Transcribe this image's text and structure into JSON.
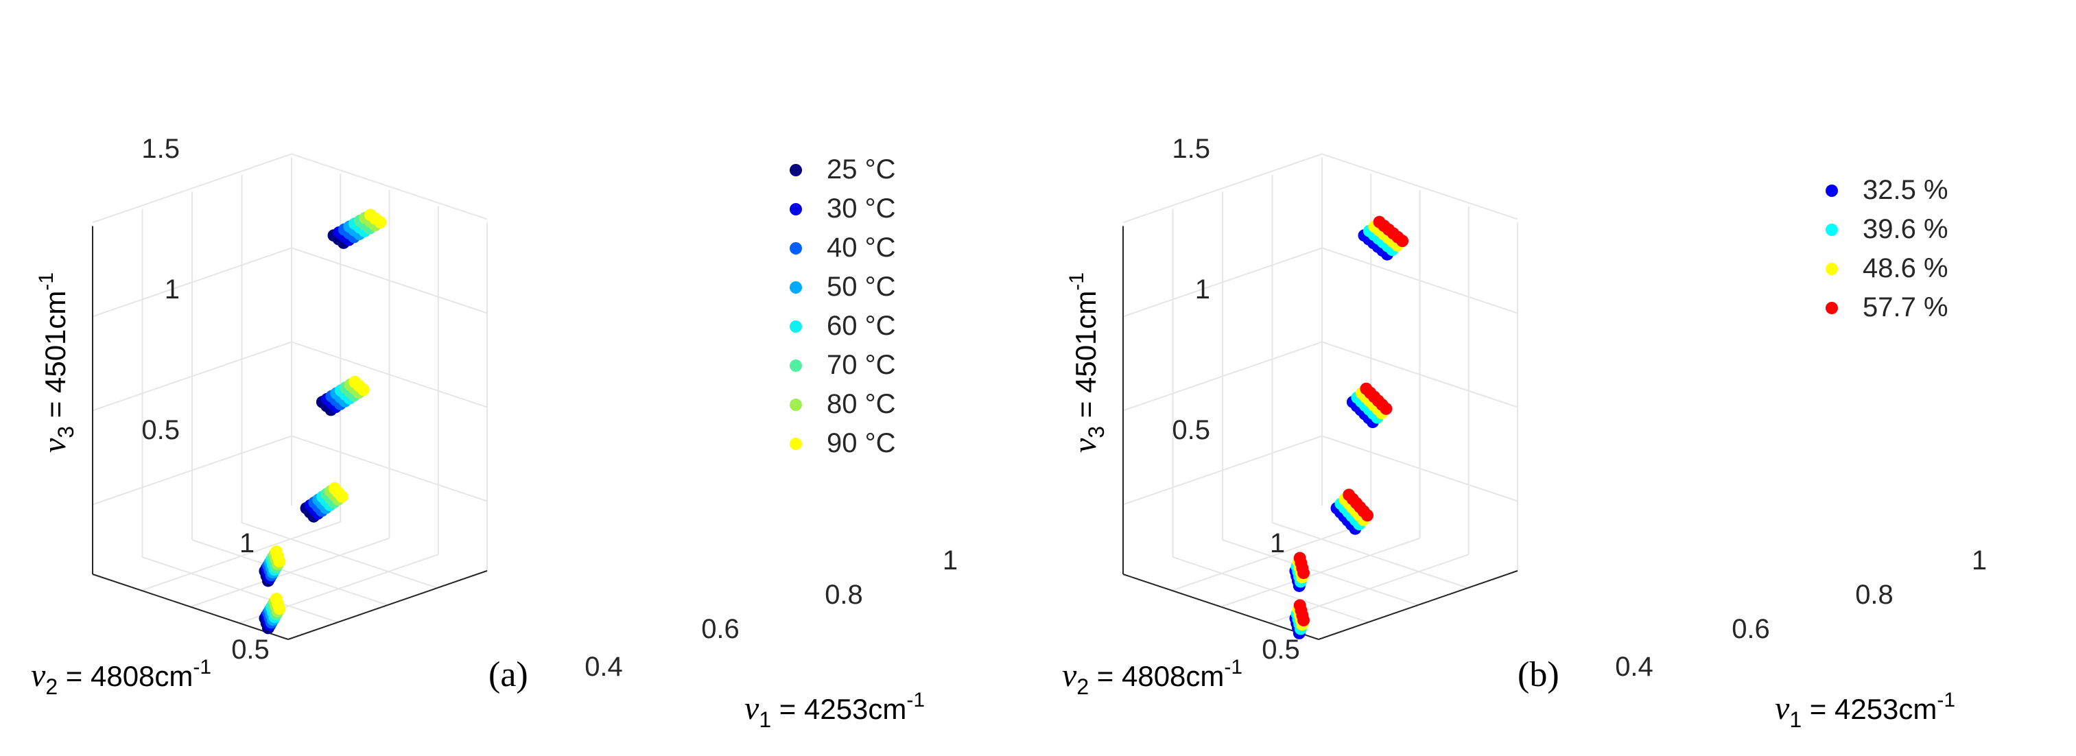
{
  "chart_data": [
    {
      "type": "scatter",
      "panel_label": "(a)",
      "x_label": "ν1 = 4253cm-1",
      "y_label": "ν2 = 4808cm-1",
      "z_label": "ν3 = 4501cm-1",
      "x_ticks": [
        "0.4",
        "0.6",
        "0.8",
        "1"
      ],
      "y_ticks": [
        "0.5",
        "1"
      ],
      "z_ticks": [
        "0.5",
        "1",
        "1.5"
      ],
      "legend_position": "right",
      "grid": true,
      "series": [
        {
          "name": "25 °C",
          "color": "#00007f"
        },
        {
          "name": "30 °C",
          "color": "#0000e5"
        },
        {
          "name": "40 °C",
          "color": "#0060ff"
        },
        {
          "name": "50 °C",
          "color": "#00aaff"
        },
        {
          "name": "60 °C",
          "color": "#10f0f0"
        },
        {
          "name": "70 °C",
          "color": "#50f0a0"
        },
        {
          "name": "80 °C",
          "color": "#a0f050"
        },
        {
          "name": "90 °C",
          "color": "#ffff00"
        }
      ],
      "groups": [
        {
          "x": 0.4,
          "y": 0.4,
          "z": 0.35,
          "points_per_series": 3,
          "dx": 0.005,
          "dy": 0.003
        },
        {
          "x": 0.46,
          "y": 0.48,
          "z": 0.48,
          "points_per_series": 3,
          "dx": 0.005,
          "dy": 0.003
        },
        {
          "x": 0.7,
          "y": 0.62,
          "z": 0.58,
          "points_per_series": 3,
          "dx": 0.012,
          "dy": 0.008
        },
        {
          "x": 0.85,
          "y": 0.75,
          "z": 0.88,
          "points_per_series": 3,
          "dx": 0.014,
          "dy": 0.009
        },
        {
          "x": 1.0,
          "y": 0.9,
          "z": 1.4,
          "points_per_series": 3,
          "dx": 0.016,
          "dy": 0.01
        }
      ]
    },
    {
      "type": "scatter",
      "panel_label": "(b)",
      "x_label": "ν1 = 4253cm-1",
      "y_label": "ν2 = 4808cm-1",
      "z_label": "ν3 = 4501cm-1",
      "x_ticks": [
        "0.4",
        "0.6",
        "0.8",
        "1"
      ],
      "y_ticks": [
        "0.5",
        "1"
      ],
      "z_ticks": [
        "0.5",
        "1",
        "1.5"
      ],
      "legend_position": "top-right",
      "grid": true,
      "series": [
        {
          "name": "32.5 %",
          "color": "#0000ff"
        },
        {
          "name": "39.6 %",
          "color": "#00ffff"
        },
        {
          "name": "48.6 %",
          "color": "#ffff00"
        },
        {
          "name": "57.7 %",
          "color": "#ff0000"
        }
      ],
      "groups": [
        {
          "x": 0.4,
          "y": 0.4,
          "z": 0.35,
          "points_per_series": 4,
          "dx": 0.004,
          "dy": 0.003
        },
        {
          "x": 0.46,
          "y": 0.48,
          "z": 0.48,
          "points_per_series": 4,
          "dx": 0.004,
          "dy": 0.003
        },
        {
          "x": 0.7,
          "y": 0.62,
          "z": 0.58,
          "points_per_series": 6,
          "dx": 0.012,
          "dy": 0.008
        },
        {
          "x": 0.85,
          "y": 0.75,
          "z": 0.88,
          "points_per_series": 6,
          "dx": 0.013,
          "dy": 0.009
        },
        {
          "x": 1.0,
          "y": 0.9,
          "z": 1.4,
          "points_per_series": 6,
          "dx": 0.015,
          "dy": 0.01
        }
      ]
    }
  ]
}
